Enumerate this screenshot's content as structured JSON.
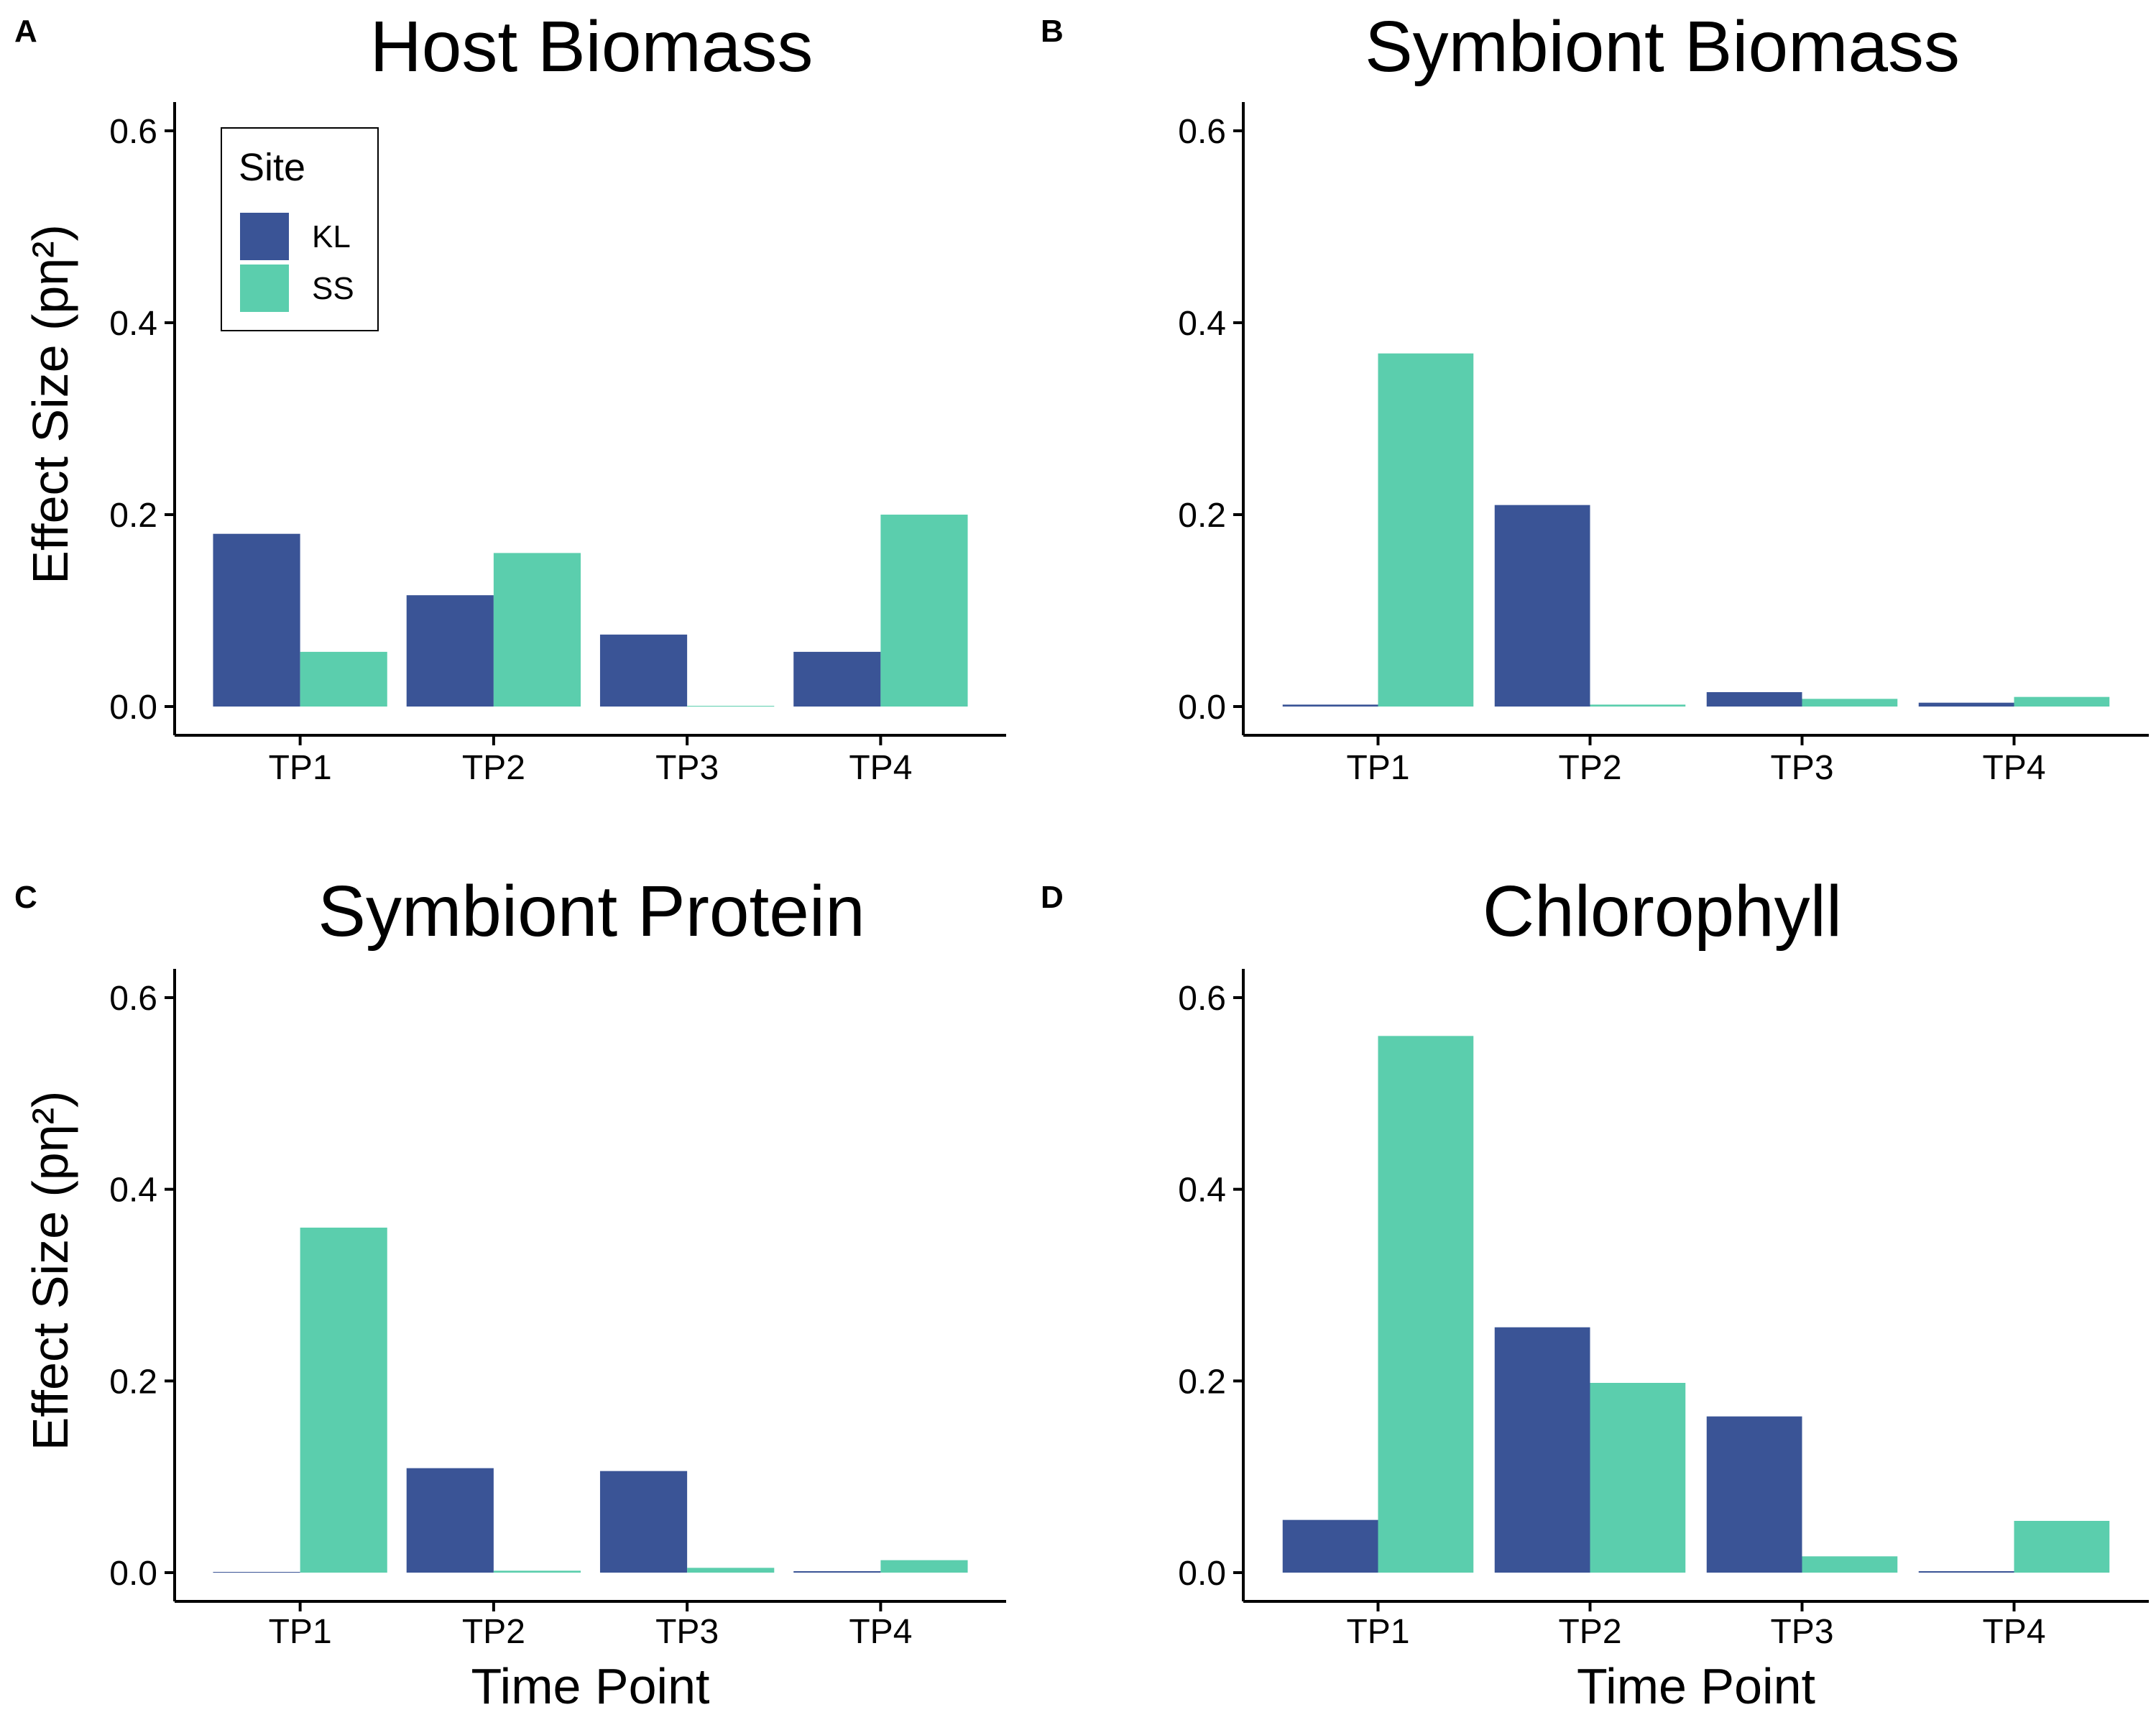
{
  "figure": {
    "series_colors": {
      "KL": "#3A5496",
      "SS": "#5BCEAD"
    }
  },
  "chart_data": [
    {
      "panel_label": "A",
      "type": "bar",
      "title": "Host Biomass",
      "xlabel": "",
      "ylabel": "Effect Size (pη²)",
      "categories": [
        "TP1",
        "TP2",
        "TP3",
        "TP4"
      ],
      "ylim": [
        0,
        0.63
      ],
      "yticks": [
        "0.0",
        "0.2",
        "0.4",
        "0.6"
      ],
      "grid": false,
      "legend": {
        "title": "Site",
        "position": "top-left",
        "entries": [
          "KL",
          "SS"
        ]
      },
      "series": [
        {
          "name": "KL",
          "values": [
            0.18,
            0.116,
            0.075,
            0.057
          ]
        },
        {
          "name": "SS",
          "values": [
            0.057,
            0.16,
            0.0,
            0.2
          ]
        }
      ]
    },
    {
      "panel_label": "B",
      "type": "bar",
      "title": "Symbiont Biomass",
      "xlabel": "",
      "ylabel": "",
      "categories": [
        "TP1",
        "TP2",
        "TP3",
        "TP4"
      ],
      "ylim": [
        0,
        0.63
      ],
      "yticks": [
        "0.0",
        "0.2",
        "0.4",
        "0.6"
      ],
      "grid": false,
      "series": [
        {
          "name": "KL",
          "values": [
            0.002,
            0.21,
            0.015,
            0.004
          ]
        },
        {
          "name": "SS",
          "values": [
            0.368,
            0.002,
            0.008,
            0.01
          ]
        }
      ]
    },
    {
      "panel_label": "C",
      "type": "bar",
      "title": "Symbiont Protein",
      "xlabel": "Time Point",
      "ylabel": "Effect Size (pη²)",
      "categories": [
        "TP1",
        "TP2",
        "TP3",
        "TP4"
      ],
      "ylim": [
        0,
        0.63
      ],
      "yticks": [
        "0.0",
        "0.2",
        "0.4",
        "0.6"
      ],
      "grid": false,
      "series": [
        {
          "name": "KL",
          "values": [
            0.0,
            0.109,
            0.106,
            0.001
          ]
        },
        {
          "name": "SS",
          "values": [
            0.36,
            0.002,
            0.005,
            0.013
          ]
        }
      ]
    },
    {
      "panel_label": "D",
      "type": "bar",
      "title": "Chlorophyll",
      "xlabel": "Time Point",
      "ylabel": "",
      "categories": [
        "TP1",
        "TP2",
        "TP3",
        "TP4"
      ],
      "ylim": [
        0,
        0.63
      ],
      "yticks": [
        "0.0",
        "0.2",
        "0.4",
        "0.6"
      ],
      "grid": false,
      "series": [
        {
          "name": "KL",
          "values": [
            0.055,
            0.256,
            0.163,
            0.001
          ]
        },
        {
          "name": "SS",
          "values": [
            0.56,
            0.198,
            0.017,
            0.054
          ]
        }
      ]
    }
  ]
}
